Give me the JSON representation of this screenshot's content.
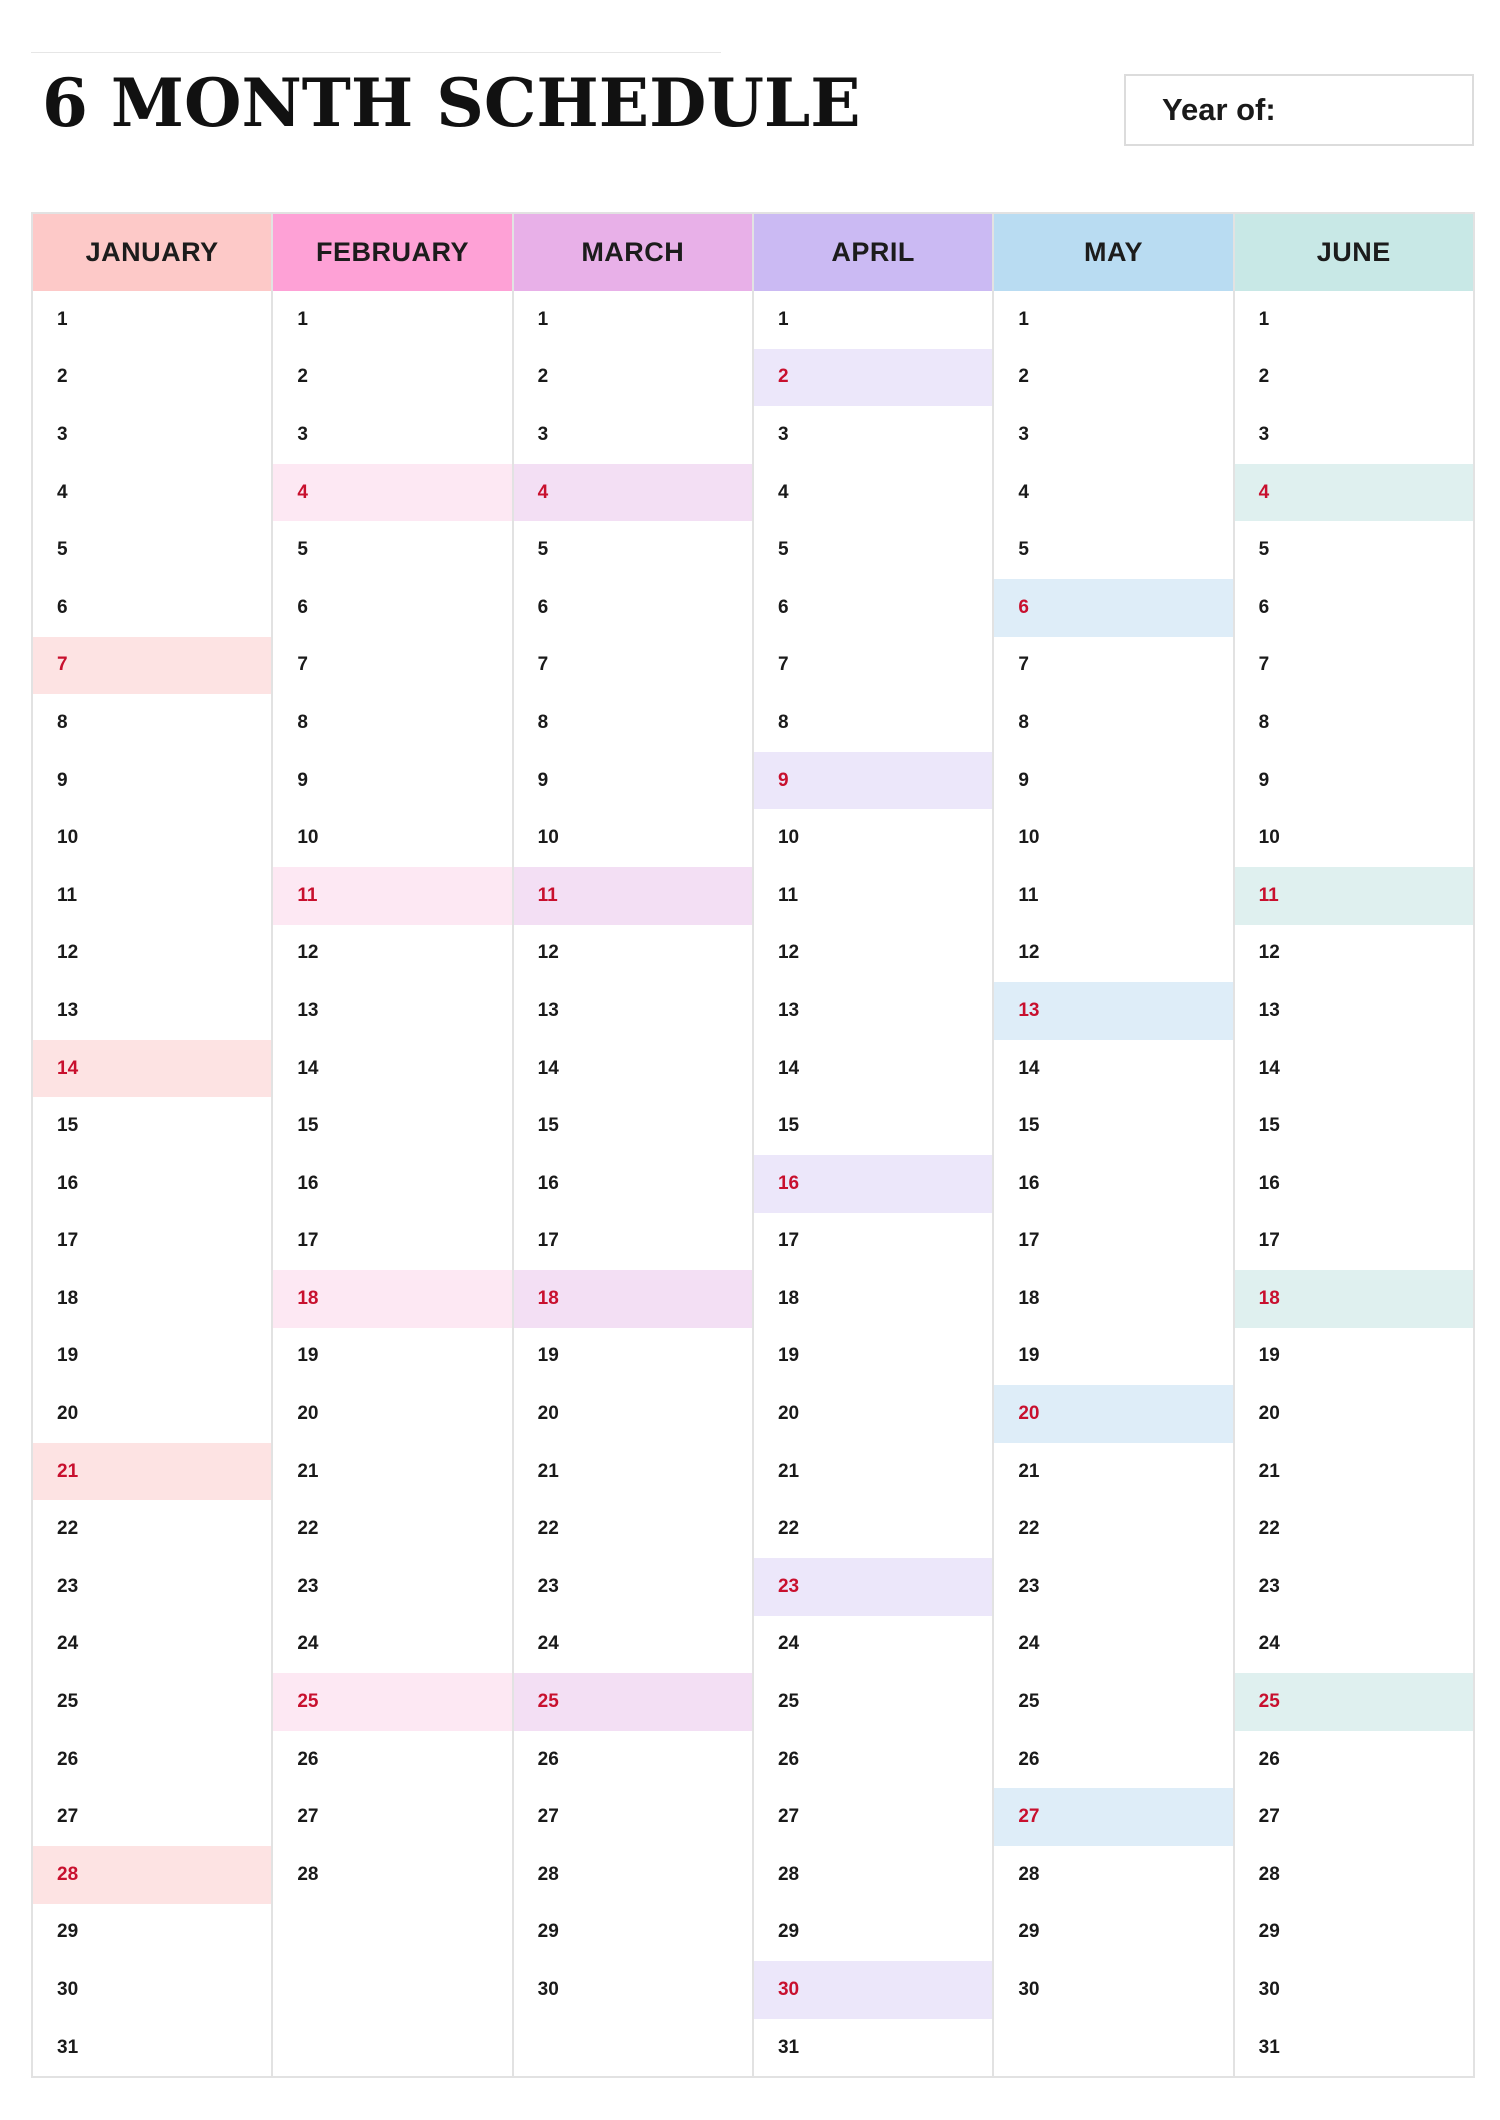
{
  "header": {
    "title": "6 MONTH SCHEDULE",
    "year_label": "Year of:"
  },
  "months": [
    {
      "name": "JANUARY",
      "days": 31,
      "highlight": [
        7,
        14,
        21,
        28
      ],
      "header_color": "#fdc9c8",
      "highlight_color": "#fde3e3"
    },
    {
      "name": "FEBRUARY",
      "days": 28,
      "highlight": [
        4,
        11,
        18,
        25
      ],
      "header_color": "#fea1d6",
      "highlight_color": "#fde8f3"
    },
    {
      "name": "MARCH",
      "days": 30,
      "highlight": [
        4,
        11,
        18,
        25
      ],
      "header_color": "#e8b0e8",
      "highlight_color": "#f3dff4"
    },
    {
      "name": "APRIL",
      "days": 31,
      "highlight": [
        2,
        9,
        16,
        23,
        30
      ],
      "header_color": "#cbbaf3",
      "highlight_color": "#ece7fa"
    },
    {
      "name": "MAY",
      "days": 30,
      "highlight": [
        6,
        13,
        20,
        27
      ],
      "header_color": "#b9dcf2",
      "highlight_color": "#deedf8"
    },
    {
      "name": "JUNE",
      "days": 31,
      "highlight": [
        4,
        11,
        18,
        25
      ],
      "header_color": "#c8e8e6",
      "highlight_color": "#dff0ef"
    }
  ]
}
